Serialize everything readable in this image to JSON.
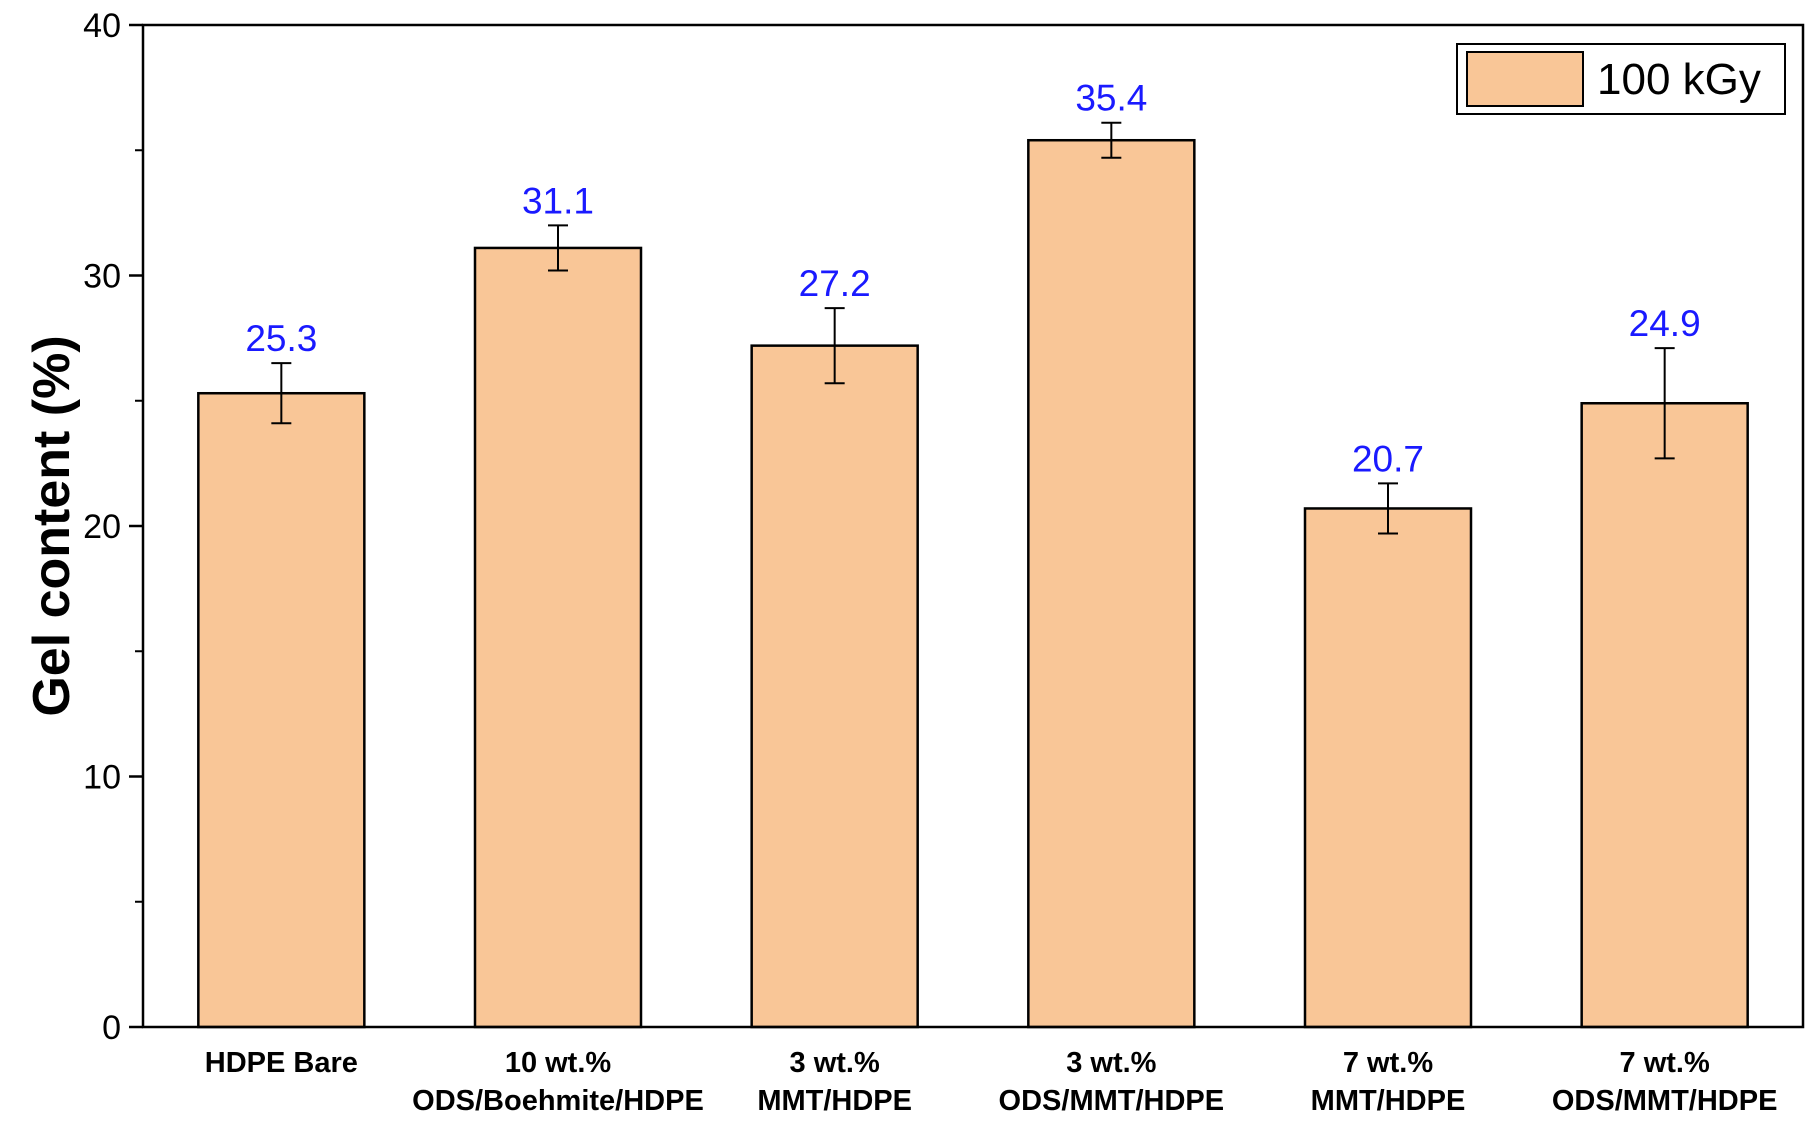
{
  "chart_data": {
    "type": "bar",
    "categories": [
      [
        "HDPE Bare"
      ],
      [
        "10 wt.%",
        "ODS/Boehmite/HDPE"
      ],
      [
        "3 wt.%",
        "MMT/HDPE"
      ],
      [
        "3 wt.%",
        "ODS/MMT/HDPE"
      ],
      [
        "7 wt.%",
        "MMT/HDPE"
      ],
      [
        "7 wt.%",
        "ODS/MMT/HDPE"
      ]
    ],
    "series": [
      {
        "name": "100 kGy",
        "values": [
          25.3,
          31.1,
          27.2,
          35.4,
          20.7,
          24.9
        ],
        "errors": [
          1.2,
          0.9,
          1.5,
          0.7,
          1.0,
          2.2
        ],
        "data_labels": [
          "25.3",
          "31.1",
          "27.2",
          "35.4",
          "20.7",
          "24.9"
        ]
      }
    ],
    "ylabel": "Gel content (%)",
    "xlabel": "",
    "ylim": [
      0,
      40
    ],
    "yticks": [
      0,
      10,
      20,
      30,
      40
    ],
    "yticks_minor": [
      5,
      15,
      25,
      35
    ],
    "legend_position": "top-right",
    "grid": false,
    "colors": {
      "bar_fill": "#f9c697",
      "bar_stroke": "#000000",
      "data_label": "#1a1aff"
    }
  }
}
